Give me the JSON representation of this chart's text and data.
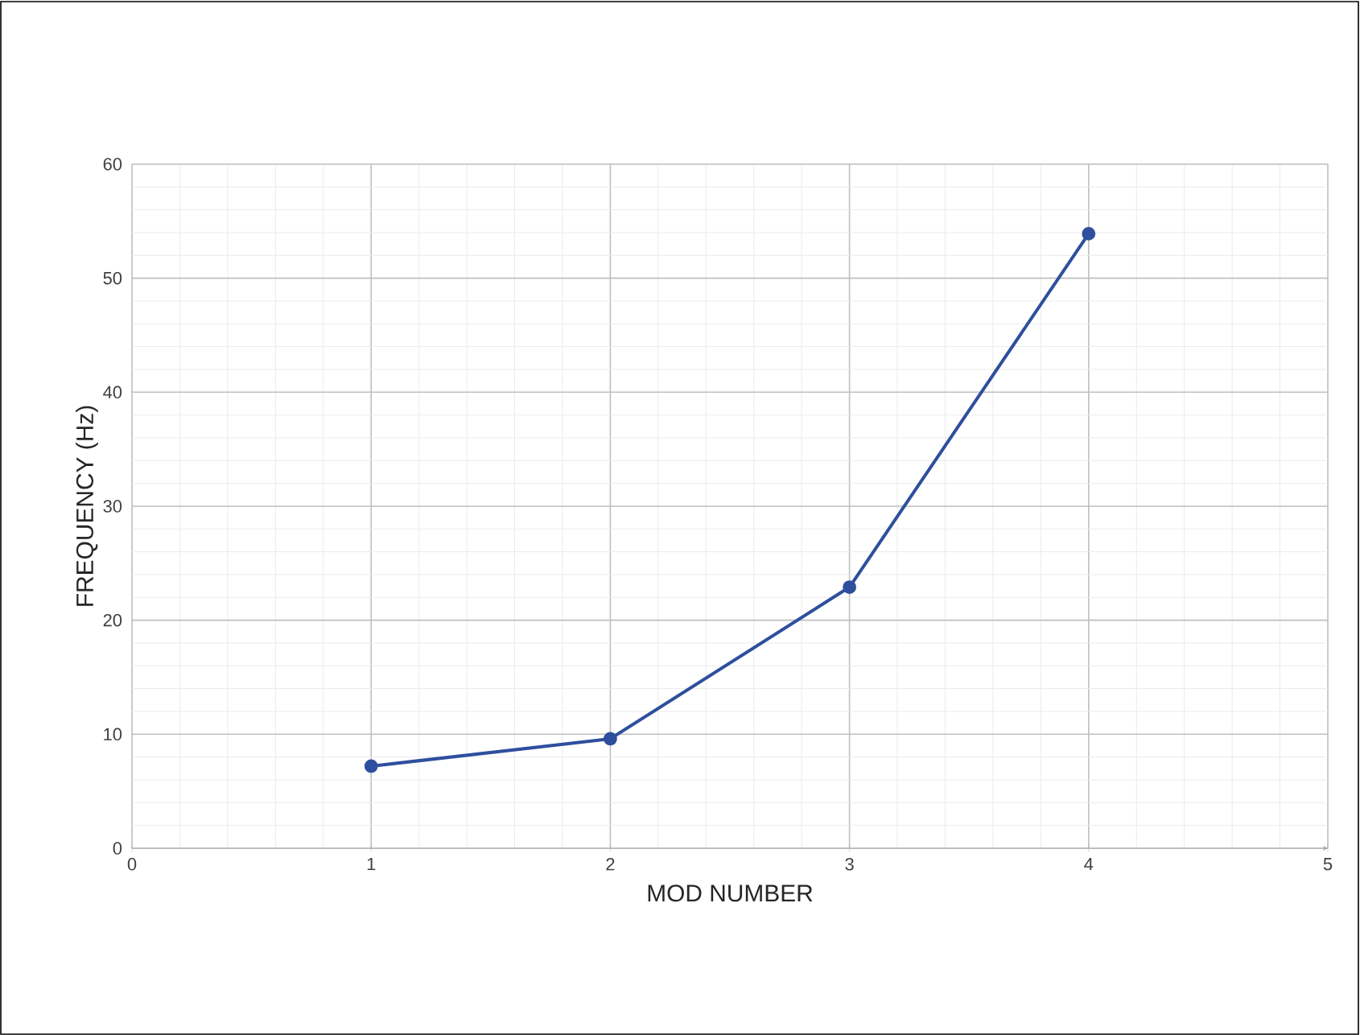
{
  "chart_data": {
    "type": "line",
    "xlabel": "MOD NUMBER",
    "ylabel": "FREQUENCY (Hz)",
    "x": [
      1,
      2,
      3,
      4
    ],
    "series": [
      {
        "color": "#2e4f9e",
        "values": [
          7.2,
          9.6,
          22.9,
          53.9
        ]
      }
    ],
    "xlim": [
      0,
      5
    ],
    "xticks": [
      0,
      1,
      2,
      3,
      4,
      5
    ],
    "ylim": [
      0,
      60
    ],
    "yticks": [
      0,
      10,
      20,
      30,
      40,
      50,
      60
    ],
    "grid": true,
    "marker": "circle",
    "line_style": "solid"
  }
}
